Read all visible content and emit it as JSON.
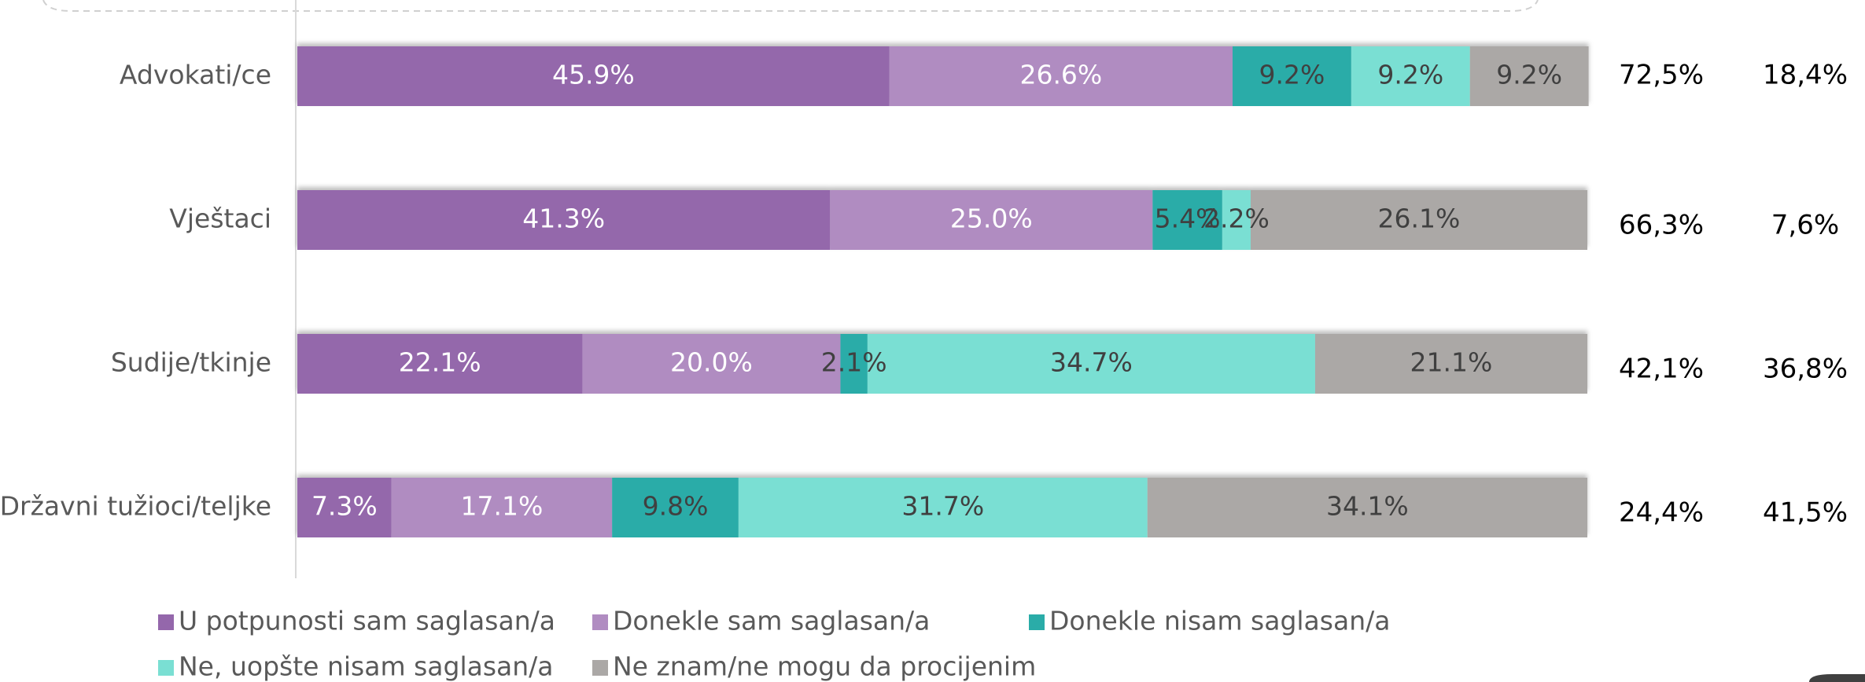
{
  "chart_data": {
    "type": "stacked_barh",
    "categories": [
      "Advokati/ce",
      "Vještaci",
      "Sudije/tkinje",
      "Državni tužioci/teljke"
    ],
    "xlim": [
      0,
      100
    ],
    "series": [
      {
        "name": "U potpunosti sam saglasan/a",
        "color": "#9467ab",
        "label_color": "#ffffff",
        "values": [
          45.9,
          41.3,
          22.1,
          7.3
        ],
        "value_labels": [
          "45.9%",
          "41.3%",
          "22.1%",
          "7.3%"
        ]
      },
      {
        "name": "Donekle sam saglasan/a",
        "color": "#b08cc1",
        "label_color": "#ffffff",
        "values": [
          26.6,
          25.0,
          20.0,
          17.1
        ],
        "value_labels": [
          "26.6%",
          "25.0%",
          "20.0%",
          "17.1%"
        ]
      },
      {
        "name": "Donekle nisam saglasan/a",
        "color": "#2aaca8",
        "label_color": "#404040",
        "values": [
          9.2,
          5.4,
          2.1,
          9.8
        ],
        "value_labels": [
          "9.2%",
          "5.4%",
          "2.1%",
          "9.8%"
        ]
      },
      {
        "name": "Ne, uopšte nisam saglasan/a",
        "color": "#7adfd3",
        "label_color": "#404040",
        "values": [
          9.2,
          2.2,
          34.7,
          31.7
        ],
        "value_labels": [
          "9.2%",
          "2.2%",
          "34.7%",
          "31.7%"
        ]
      },
      {
        "name": "Ne znam/ne mogu da procijenim",
        "color": "#aba8a6",
        "label_color": "#404040",
        "values": [
          9.2,
          26.1,
          21.1,
          34.1
        ],
        "value_labels": [
          "9.2%",
          "26.1%",
          "21.1%",
          "34.1%"
        ]
      }
    ],
    "right_columns": [
      [
        "72,5%",
        "18,4%"
      ],
      [
        "66,3%",
        "7,6%"
      ],
      [
        "42,1%",
        "36,8%"
      ],
      [
        "24,4%",
        "41,5%"
      ]
    ]
  }
}
